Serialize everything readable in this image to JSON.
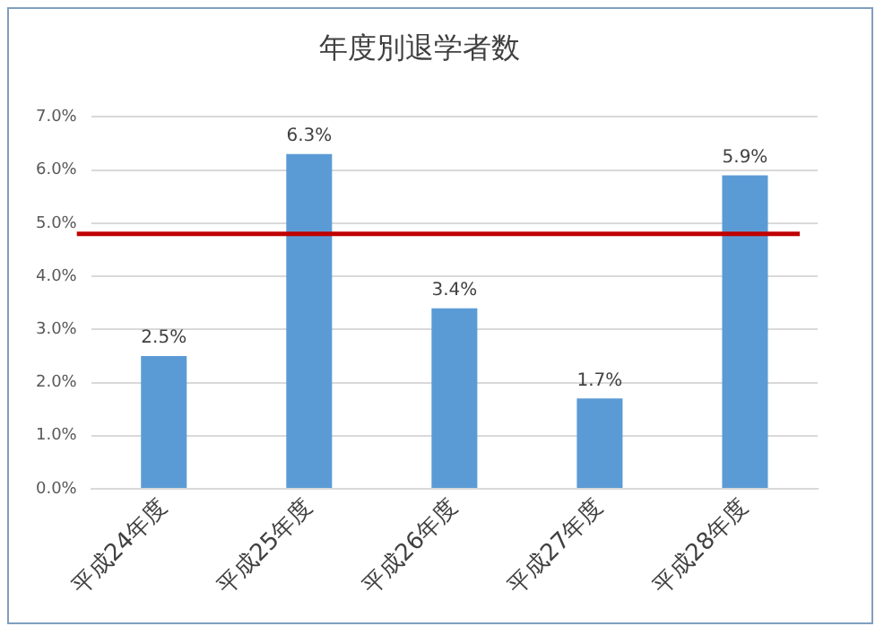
{
  "chart_data": {
    "type": "bar",
    "title": "年度別退学者数",
    "categories": [
      "平成24年度",
      "平成25年度",
      "平成26年度",
      "平成27年度",
      "平成28年度"
    ],
    "values": [
      2.5,
      6.3,
      3.4,
      1.7,
      5.9
    ],
    "value_labels": [
      "2.5%",
      "6.3%",
      "3.4%",
      "1.7%",
      "5.9%"
    ],
    "color": "#5b9bd5",
    "ylim": [
      0,
      7
    ],
    "yticks": [
      {
        "value": 0,
        "label": "0.0%"
      },
      {
        "value": 1,
        "label": "1.0%"
      },
      {
        "value": 2,
        "label": "2.0%"
      },
      {
        "value": 3,
        "label": "3.0%"
      },
      {
        "value": 4,
        "label": "4.0%"
      },
      {
        "value": 5,
        "label": "5.0%"
      },
      {
        "value": 6,
        "label": "6.0%"
      },
      {
        "value": 7,
        "label": "7.0%"
      }
    ],
    "grid": "y",
    "ref_lines": [
      {
        "axis": "y",
        "value": 4.8,
        "color": "#c00000"
      }
    ]
  }
}
